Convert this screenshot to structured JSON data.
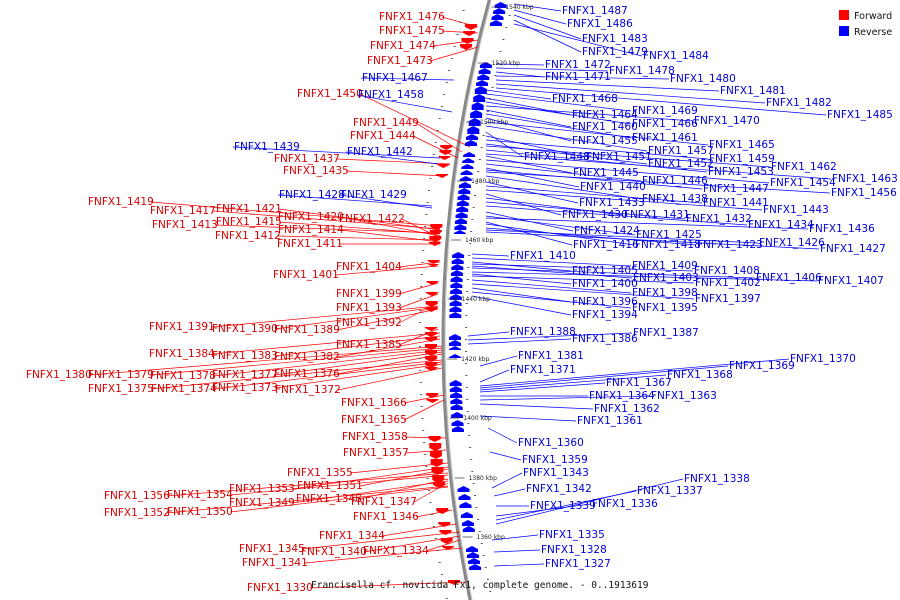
{
  "title": "Francisella cf. novicida Fx1, complete genome. - 0..1913619",
  "legend": [
    {
      "label": "Forward",
      "color": "#ff0000"
    },
    {
      "label": "Reverse",
      "color": "#0000ff"
    }
  ],
  "colors": {
    "forward": "#ff0000",
    "reverse": "#0000ff",
    "forward_text": "#d60000",
    "reverse_text": "#0000d6",
    "backbone": "#888888"
  },
  "ticks": [
    "1540 kbp",
    "1520 kbp",
    "1500 kbp",
    "1480 kbp",
    "1460 kbp",
    "1440 kbp",
    "1420 kbp",
    "1400 kbp",
    "1380 kbp",
    "1360 kbp"
  ],
  "forward_labels": [
    "FNFX1_1476",
    "FNFX1_1475",
    "FNFX1_1474",
    "FNFX1_1473",
    "FNFX1_1450",
    "FNFX1_1449",
    "FNFX1_1444",
    "FNFX1_1437",
    "FNFX1_1435",
    "FNFX1_1419",
    "FNFX1_1417",
    "FNFX1_1421",
    "FNFX1_1413",
    "FNFX1_1415",
    "FNFX1_1420",
    "FNFX1_1422",
    "FNFX1_1412",
    "FNFX1_1414",
    "FNFX1_1411",
    "FNFX1_1404",
    "FNFX1_1401",
    "FNFX1_1399",
    "FNFX1_1393",
    "FNFX1_1392",
    "FNFX1_1391",
    "FNFX1_1390",
    "FNFX1_1389",
    "FNFX1_1385",
    "FNFX1_1384",
    "FNFX1_1383",
    "FNFX1_1382",
    "FNFX1_1380",
    "FNFX1_1379",
    "FNFX1_1378",
    "FNFX1_1377",
    "FNFX1_1376",
    "FNFX1_1375",
    "FNFX1_1374",
    "FNFX1_1373",
    "FNFX1_1372",
    "FNFX1_1366",
    "FNFX1_1365",
    "FNFX1_1358",
    "FNFX1_1357",
    "FNFX1_1355",
    "FNFX1_1353",
    "FNFX1_1351",
    "FNFX1_1356",
    "FNFX1_1354",
    "FNFX1_1348",
    "FNFX1_1349",
    "FNFX1_1347",
    "FNFX1_1352",
    "FNFX1_1350",
    "FNFX1_1346",
    "FNFX1_1344",
    "FNFX1_1345",
    "FNFX1_1340",
    "FNFX1_1334",
    "FNFX1_1341",
    "FNFX1_1330"
  ],
  "reverse_labels": [
    "FNFX1_1487",
    "FNFX1_1486",
    "FNFX1_1483",
    "FNFX1_1479",
    "FNFX1_1484",
    "FNFX1_1472",
    "FNFX1_1478",
    "FNFX1_1471",
    "FNFX1_1480",
    "FNFX1_1481",
    "FNFX1_1467",
    "FNFX1_1482",
    "FNFX1_1458",
    "FNFX1_1485",
    "FNFX1_1468",
    "FNFX1_1469",
    "FNFX1_1464",
    "FNFX1_1466",
    "FNFX1_1470",
    "FNFX1_1460",
    "FNFX1_1461",
    "FNFX1_1455",
    "FNFX1_1465",
    "FNFX1_1439",
    "FNFX1_1457",
    "FNFX1_1442",
    "FNFX1_1448",
    "FNFX1_1451",
    "FNFX1_1459",
    "FNFX1_1452",
    "FNFX1_1462",
    "FNFX1_1453",
    "FNFX1_1463",
    "FNFX1_1445",
    "FNFX1_1454",
    "FNFX1_1446",
    "FNFX1_1440",
    "FNFX1_1447",
    "FNFX1_1456",
    "FNFX1_1428",
    "FNFX1_1429",
    "FNFX1_1438",
    "FNFX1_1433",
    "FNFX1_1441",
    "FNFX1_1443",
    "FNFX1_1430",
    "FNFX1_1431",
    "FNFX1_1432",
    "FNFX1_1434",
    "FNFX1_1424",
    "FNFX1_1425",
    "FNFX1_1436",
    "FNFX1_1416",
    "FNFX1_1418",
    "FNFX1_1423",
    "FNFX1_1426",
    "FNFX1_1427",
    "FNFX1_1410",
    "FNFX1_1409",
    "FNFX1_1405",
    "FNFX1_1408",
    "FNFX1_1403",
    "FNFX1_1406",
    "FNFX1_1407",
    "FNFX1_1400",
    "FNFX1_1402",
    "FNFX1_1398",
    "FNFX1_1397",
    "FNFX1_1396",
    "FNFX1_1395",
    "FNFX1_1394",
    "FNFX1_1388",
    "FNFX1_1387",
    "FNFX1_1386",
    "FNFX1_1370",
    "FNFX1_1381",
    "FNFX1_1369",
    "FNFX1_1371",
    "FNFX1_1368",
    "FNFX1_1367",
    "FNFX1_1364",
    "FNFX1_1363",
    "FNFX1_1362",
    "FNFX1_1361",
    "FNFX1_1360",
    "FNFX1_1359",
    "FNFX1_1343",
    "FNFX1_1338",
    "FNFX1_1342",
    "FNFX1_1337",
    "FNFX1_1339",
    "FNFX1_1336",
    "FNFX1_1335",
    "FNFX1_1328",
    "FNFX1_1327"
  ]
}
